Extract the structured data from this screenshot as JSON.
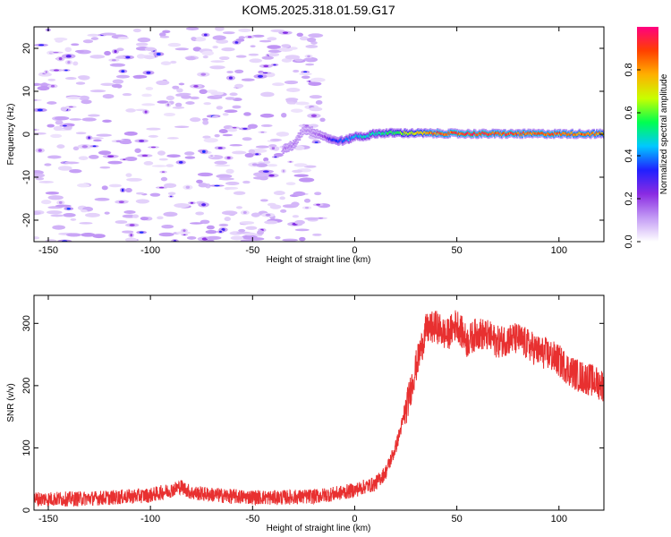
{
  "title": "KOM5.2025.318.01.59.G17",
  "chart_data": [
    {
      "type": "heatmap",
      "xlabel": "Height of straight line (km)",
      "ylabel": "Frequency (Hz)",
      "xlim": [
        -157,
        122
      ],
      "ylim": [
        -25,
        25
      ],
      "x_ticks": [
        -150,
        -100,
        -50,
        0,
        50,
        100
      ],
      "y_ticks": [
        -20,
        -10,
        0,
        10,
        20
      ],
      "colorbar": {
        "label": "Normalized spectral amplitude",
        "range": [
          0,
          1
        ],
        "ticks": [
          0.0,
          0.2,
          0.4,
          0.6,
          0.8
        ],
        "colors": [
          "#ffffff",
          "#c39bf5",
          "#8a2be2",
          "#2020ff",
          "#00c8ff",
          "#00ff50",
          "#c8ff00",
          "#ffb000",
          "#ff4000",
          "#ff0080"
        ]
      },
      "ridge": {
        "x": [
          -35,
          -30,
          -25,
          -20,
          -15,
          -10,
          -5,
          0,
          5,
          10,
          20,
          40,
          60,
          80,
          100,
          122
        ],
        "freq": [
          -3.5,
          -2.5,
          1.2,
          0.5,
          -0.5,
          -1.5,
          -1.5,
          -0.5,
          -0.5,
          0.2,
          0.3,
          0.2,
          0.1,
          0.1,
          0.1,
          0.1
        ],
        "amplitude": [
          0.15,
          0.15,
          0.12,
          0.15,
          0.2,
          0.35,
          0.4,
          0.45,
          0.5,
          0.5,
          0.6,
          0.9,
          0.95,
          0.92,
          0.88,
          0.85
        ]
      },
      "noise_region_x": [
        -157,
        -15
      ],
      "noise_amplitude": 0.05
    },
    {
      "type": "line",
      "xlabel": "Height of straight line (km)",
      "ylabel": "SNR (v/v)",
      "xlim": [
        -157,
        122
      ],
      "ylim": [
        0,
        345
      ],
      "x_ticks": [
        -150,
        -100,
        -50,
        0,
        50,
        100
      ],
      "y_ticks": [
        0,
        100,
        200,
        300
      ],
      "series": [
        {
          "name": "SNR",
          "color": "#e83030",
          "x": [
            -157,
            -140,
            -120,
            -100,
            -90,
            -85,
            -80,
            -60,
            -40,
            -20,
            -10,
            0,
            5,
            10,
            15,
            20,
            25,
            30,
            35,
            40,
            45,
            50,
            55,
            60,
            65,
            70,
            75,
            80,
            85,
            90,
            95,
            100,
            105,
            110,
            115,
            122
          ],
          "values": [
            18,
            18,
            20,
            24,
            32,
            38,
            28,
            22,
            20,
            22,
            26,
            32,
            38,
            42,
            60,
            100,
            160,
            230,
            290,
            295,
            280,
            300,
            270,
            285,
            280,
            270,
            275,
            275,
            265,
            255,
            250,
            240,
            225,
            215,
            210,
            200
          ],
          "noise": 12
        }
      ]
    }
  ]
}
